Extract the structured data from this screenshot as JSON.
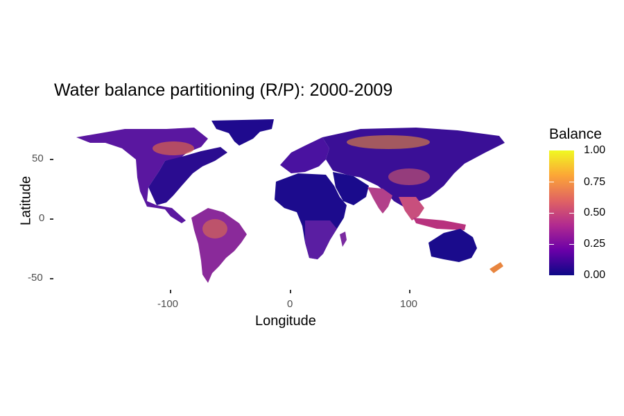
{
  "title": "Water balance partitioning (R/P): 2000-2009",
  "x_axis": {
    "label": "Longitude",
    "ticks": [
      -100,
      0,
      100
    ]
  },
  "y_axis": {
    "label": "Latitude",
    "ticks": [
      50,
      0,
      -50
    ]
  },
  "legend": {
    "title": "Balance",
    "labels": [
      "1.00",
      "0.75",
      "0.50",
      "0.25",
      "0.00"
    ],
    "colors": [
      "#f0f921",
      "#fca636",
      "#e16462",
      "#b12a90",
      "#6a00a8",
      "#0d0887"
    ]
  },
  "map": {
    "ocean_color": "#ffffff",
    "low_color": "#1a0b8c",
    "high_color": "#f9a531"
  }
}
